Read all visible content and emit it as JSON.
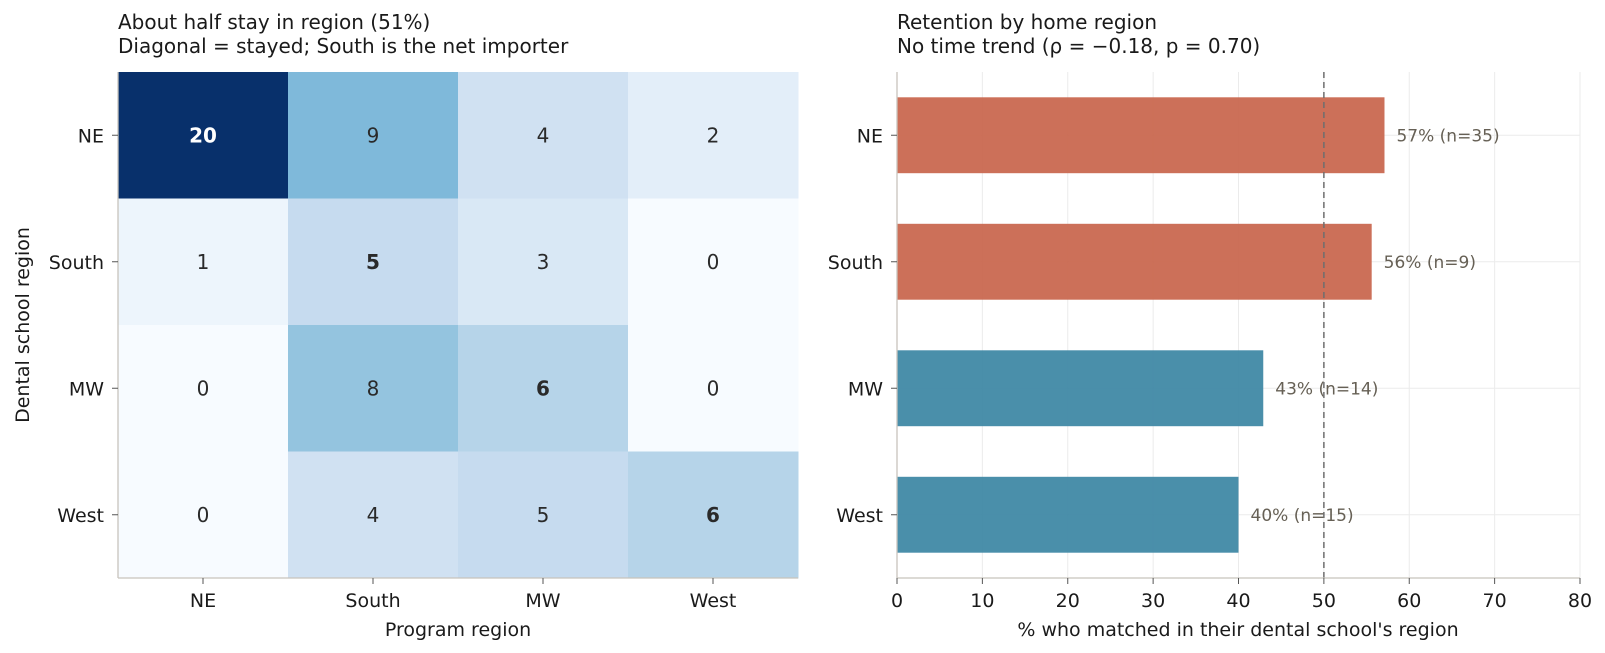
{
  "chart_data": [
    {
      "type": "heatmap",
      "title": "About half stay in region (51%)",
      "subtitle": "Diagonal = stayed; South is the net importer",
      "xlabel": "Program region",
      "ylabel": "Dental school region",
      "x_categories": [
        "NE",
        "South",
        "MW",
        "West"
      ],
      "y_categories": [
        "NE",
        "South",
        "MW",
        "West"
      ],
      "values": [
        [
          20,
          9,
          4,
          2
        ],
        [
          1,
          5,
          3,
          0
        ],
        [
          0,
          8,
          6,
          0
        ],
        [
          0,
          4,
          5,
          6
        ]
      ],
      "colormap": "Blues",
      "diagonal_bold": true
    },
    {
      "type": "bar",
      "orientation": "horizontal",
      "title": "Retention by home region",
      "subtitle": "No time trend (ρ = −0.18, p = 0.70)",
      "xlabel": "% who matched in their dental school's region",
      "categories": [
        "NE",
        "South",
        "MW",
        "West"
      ],
      "values": [
        57.1,
        55.6,
        42.9,
        40.0
      ],
      "labels": [
        "57%  (n=35)",
        "56%  (n=9)",
        "43%  (n=14)",
        "40%  (n=15)"
      ],
      "colors": [
        "#c8644b",
        "#c8644b",
        "#3b86a3",
        "#3b86a3"
      ],
      "xlim": [
        0,
        80
      ],
      "xticks": [
        0,
        10,
        20,
        30,
        40,
        50,
        60,
        70,
        80
      ],
      "reference_line": 50,
      "grid": true
    }
  ]
}
